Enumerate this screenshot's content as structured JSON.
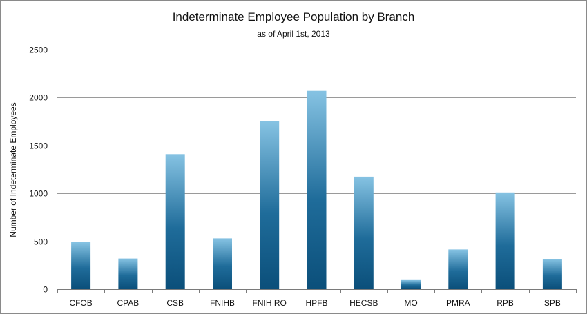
{
  "chart_data": {
    "type": "bar",
    "title": "Indeterminate Employee Population by Branch",
    "subtitle": "as of April 1st, 2013",
    "xlabel": "",
    "ylabel": "Number of Indeterminate Employees",
    "categories": [
      "CFOB",
      "CPAB",
      "CSB",
      "FNIHB",
      "FNIH RO",
      "HPFB",
      "HECSB",
      "MO",
      "PMRA",
      "RPB",
      "SPB"
    ],
    "values": [
      490,
      320,
      1410,
      530,
      1755,
      2070,
      1175,
      95,
      415,
      1010,
      315
    ],
    "ylim": [
      0,
      2500
    ],
    "yticks": [
      0,
      500,
      1000,
      1500,
      2000,
      2500
    ],
    "grid": true,
    "legend": "none",
    "colors": {
      "bar_top": "#86c3e3",
      "bar_bottom": "#0b4f7a",
      "grid": "#9a9a9a"
    }
  }
}
